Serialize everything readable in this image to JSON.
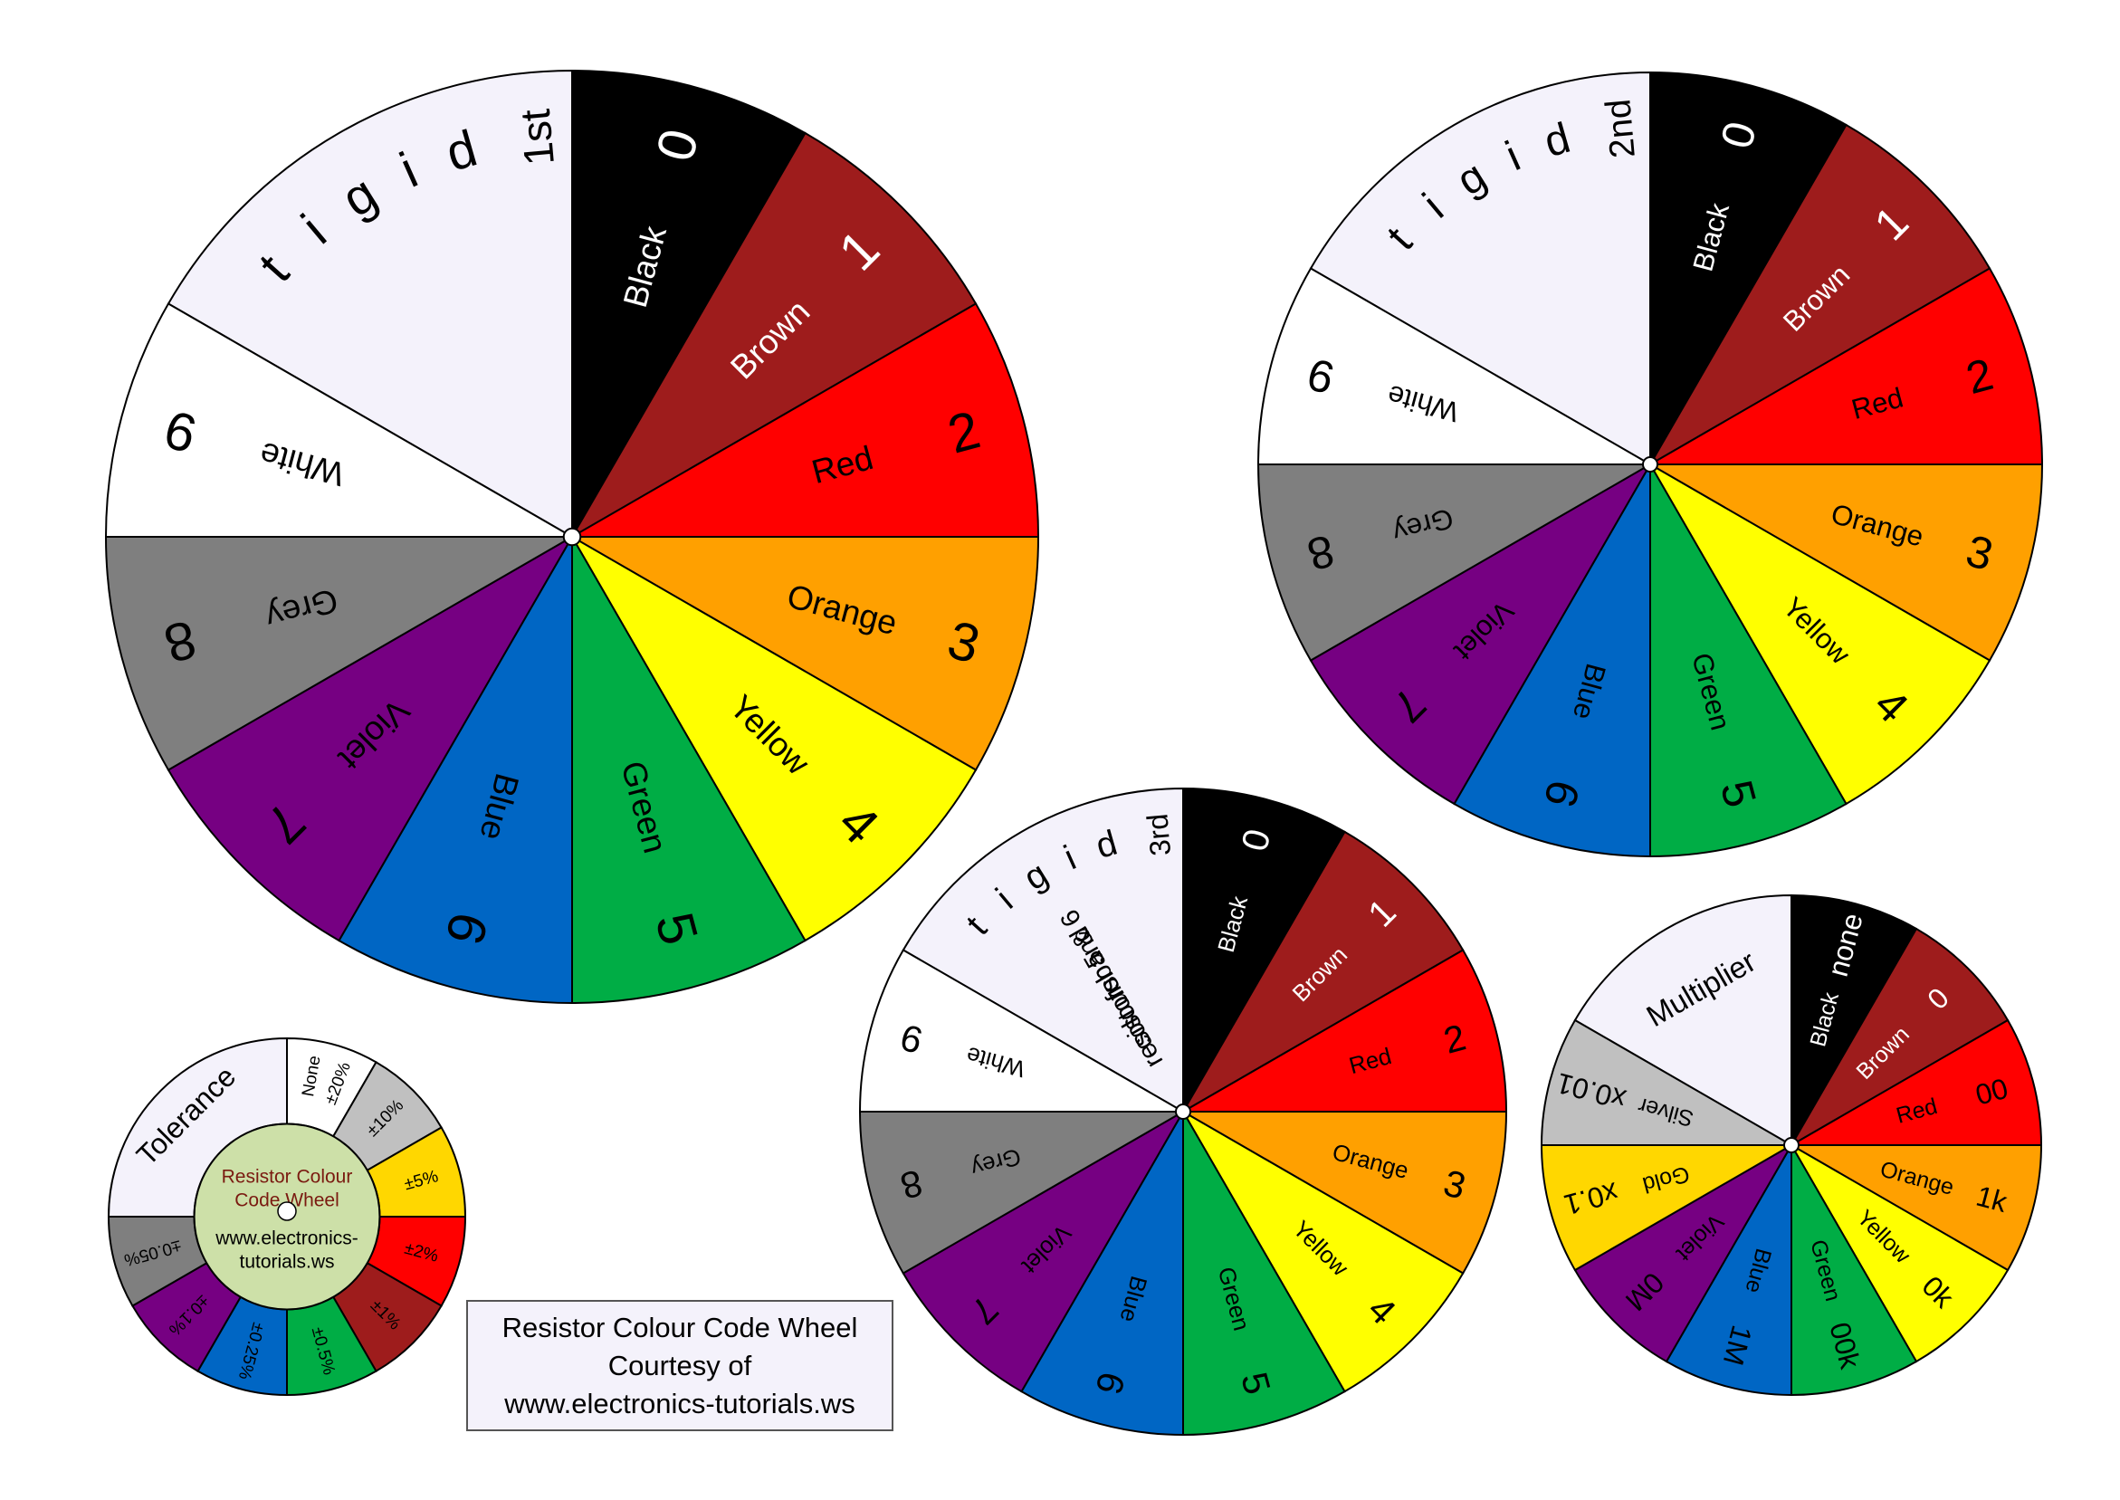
{
  "wheels": [
    {
      "id": "first-digit",
      "blank_color": "#f4f2fb",
      "blank_label": "1st digit",
      "blank_lines": [],
      "segments": [
        {
          "value": "0",
          "name": "Black",
          "color": "#000000",
          "text_color": "#ffffff"
        },
        {
          "value": "1",
          "name": "Brown",
          "color": "#9e1c1c",
          "text_color": "#ffffff"
        },
        {
          "value": "2",
          "name": "Red",
          "color": "#ff0000",
          "text_color": "#000000"
        },
        {
          "value": "3",
          "name": "Orange",
          "color": "#ffa000",
          "text_color": "#000000"
        },
        {
          "value": "4",
          "name": "Yellow",
          "color": "#ffff00",
          "text_color": "#000000"
        },
        {
          "value": "5",
          "name": "Green",
          "color": "#00ad45",
          "text_color": "#000000"
        },
        {
          "value": "6",
          "name": "Blue",
          "color": "#0066c4",
          "text_color": "#000000"
        },
        {
          "value": "7",
          "name": "Violet",
          "color": "#760082",
          "text_color": "#000000"
        },
        {
          "value": "8",
          "name": "Grey",
          "color": "#7f7f7f",
          "text_color": "#000000"
        },
        {
          "value": "9",
          "name": "White",
          "color": "#ffffff",
          "text_color": "#000000"
        }
      ]
    },
    {
      "id": "second-digit",
      "blank_color": "#f4f2fb",
      "blank_label": "2nd digit",
      "blank_lines": [],
      "segments": [
        {
          "value": "0",
          "name": "Black",
          "color": "#000000",
          "text_color": "#ffffff"
        },
        {
          "value": "1",
          "name": "Brown",
          "color": "#9e1c1c",
          "text_color": "#ffffff"
        },
        {
          "value": "2",
          "name": "Red",
          "color": "#ff0000",
          "text_color": "#000000"
        },
        {
          "value": "3",
          "name": "Orange",
          "color": "#ffa000",
          "text_color": "#000000"
        },
        {
          "value": "4",
          "name": "Yellow",
          "color": "#ffff00",
          "text_color": "#000000"
        },
        {
          "value": "5",
          "name": "Green",
          "color": "#00ad45",
          "text_color": "#000000"
        },
        {
          "value": "6",
          "name": "Blue",
          "color": "#0066c4",
          "text_color": "#000000"
        },
        {
          "value": "7",
          "name": "Violet",
          "color": "#760082",
          "text_color": "#000000"
        },
        {
          "value": "8",
          "name": "Grey",
          "color": "#7f7f7f",
          "text_color": "#000000"
        },
        {
          "value": "9",
          "name": "White",
          "color": "#ffffff",
          "text_color": "#000000"
        }
      ]
    },
    {
      "id": "third-digit",
      "blank_color": "#f4f2fb",
      "blank_label": "3rd digit",
      "blank_lines": [
        "for 5 & 6",
        "colour band",
        "resistors"
      ],
      "segments": [
        {
          "value": "0",
          "name": "Black",
          "color": "#000000",
          "text_color": "#ffffff"
        },
        {
          "value": "1",
          "name": "Brown",
          "color": "#9e1c1c",
          "text_color": "#ffffff"
        },
        {
          "value": "2",
          "name": "Red",
          "color": "#ff0000",
          "text_color": "#000000"
        },
        {
          "value": "3",
          "name": "Orange",
          "color": "#ffa000",
          "text_color": "#000000"
        },
        {
          "value": "4",
          "name": "Yellow",
          "color": "#ffff00",
          "text_color": "#000000"
        },
        {
          "value": "5",
          "name": "Green",
          "color": "#00ad45",
          "text_color": "#000000"
        },
        {
          "value": "6",
          "name": "Blue",
          "color": "#0066c4",
          "text_color": "#000000"
        },
        {
          "value": "7",
          "name": "Violet",
          "color": "#760082",
          "text_color": "#000000"
        },
        {
          "value": "8",
          "name": "Grey",
          "color": "#7f7f7f",
          "text_color": "#000000"
        },
        {
          "value": "9",
          "name": "White",
          "color": "#ffffff",
          "text_color": "#000000"
        }
      ]
    },
    {
      "id": "multiplier",
      "blank_color": "#f4f2fb",
      "blank_label": "Multiplier",
      "blank_lines": [],
      "segments": [
        {
          "value": "none",
          "name": "Black",
          "color": "#000000",
          "text_color": "#ffffff"
        },
        {
          "value": "0",
          "name": "Brown",
          "color": "#9e1c1c",
          "text_color": "#ffffff"
        },
        {
          "value": "00",
          "name": "Red",
          "color": "#ff0000",
          "text_color": "#000000"
        },
        {
          "value": "1k",
          "name": "Orange",
          "color": "#ffa000",
          "text_color": "#000000"
        },
        {
          "value": "0k",
          "name": "Yellow",
          "color": "#ffff00",
          "text_color": "#000000"
        },
        {
          "value": "00k",
          "name": "Green",
          "color": "#00ad45",
          "text_color": "#000000"
        },
        {
          "value": "1M",
          "name": "Blue",
          "color": "#0066c4",
          "text_color": "#000000"
        },
        {
          "value": "0M",
          "name": "Violet",
          "color": "#760082",
          "text_color": "#000000"
        },
        {
          "value": "x0.1",
          "name": "Gold",
          "color": "#ffd700",
          "text_color": "#000000"
        },
        {
          "value": "x0.01",
          "name": "Silver",
          "color": "#c0c0c0",
          "text_color": "#000000"
        }
      ]
    },
    {
      "id": "tolerance",
      "blank_color": "#f4f2fb",
      "blank_label": "Tolerance",
      "blank_lines": [],
      "center_title": [
        "Resistor Colour",
        "Code Wheel"
      ],
      "center_url": [
        "www.electronics-",
        "tutorials.ws"
      ],
      "center_color": "#cde0a8",
      "center_title_color": "#7a1a10",
      "segments": [
        {
          "value": "None ±20%",
          "name": "",
          "color": "#ffffff",
          "text_color": "#000000"
        },
        {
          "value": "±10%",
          "name": "",
          "color": "#c0c0c0",
          "text_color": "#000000"
        },
        {
          "value": "±5%",
          "name": "",
          "color": "#ffd700",
          "text_color": "#000000"
        },
        {
          "value": "±2%",
          "name": "",
          "color": "#ff0000",
          "text_color": "#000000"
        },
        {
          "value": "±1%",
          "name": "",
          "color": "#9e1c1c",
          "text_color": "#000000"
        },
        {
          "value": "±0.5%",
          "name": "",
          "color": "#00ad45",
          "text_color": "#000000"
        },
        {
          "value": "±0.25%",
          "name": "",
          "color": "#0066c4",
          "text_color": "#000000"
        },
        {
          "value": "±0.1%",
          "name": "",
          "color": "#760082",
          "text_color": "#000000"
        },
        {
          "value": "±0.05%",
          "name": "",
          "color": "#7f7f7f",
          "text_color": "#000000"
        }
      ]
    }
  ],
  "credit": {
    "line1": "Resistor Colour Code Wheel",
    "line2": "Courtesy of",
    "line3": "www.electronics-tutorials.ws"
  }
}
